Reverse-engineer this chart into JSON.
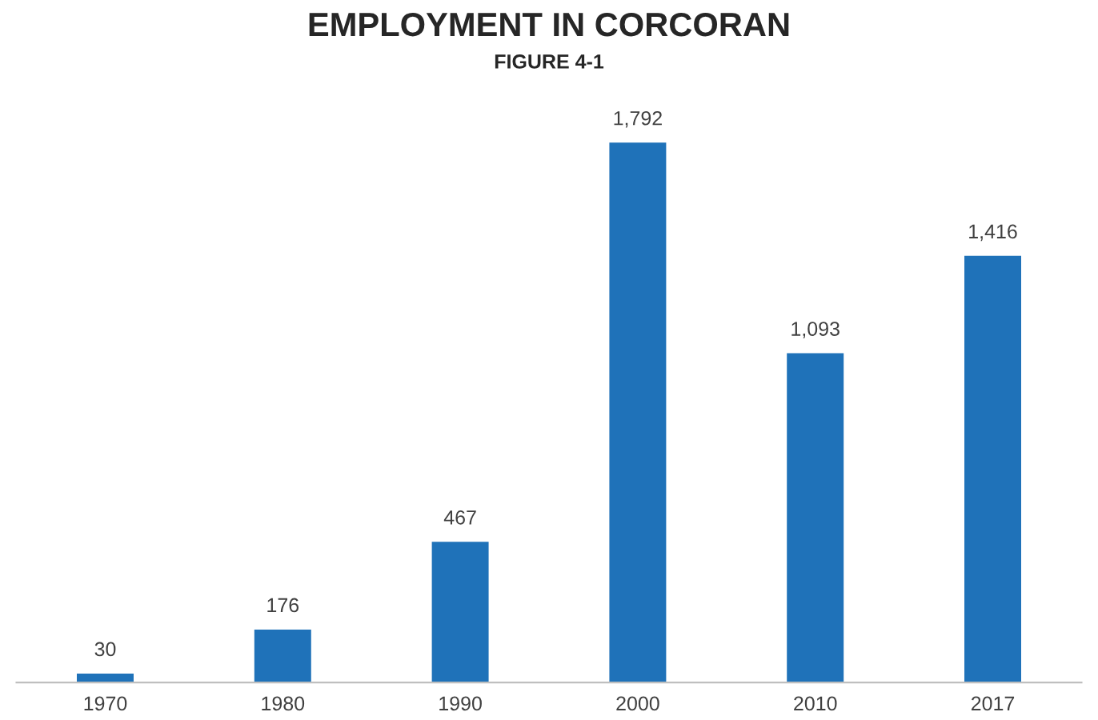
{
  "chart_data": {
    "type": "bar",
    "title": "EMPLOYMENT IN CORCORAN",
    "subtitle": "FIGURE 4-1",
    "categories": [
      "1970",
      "1980",
      "1990",
      "2000",
      "2010",
      "2017"
    ],
    "values": [
      30,
      176,
      467,
      1792,
      1093,
      1416
    ],
    "value_labels": [
      "30",
      "176",
      "467",
      "1,792",
      "1,093",
      "1,416"
    ],
    "color": "#1f72b9",
    "grid": false,
    "legend": false,
    "tick_labels": "x"
  }
}
